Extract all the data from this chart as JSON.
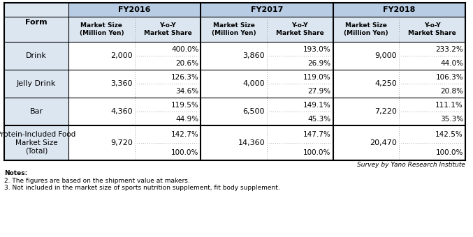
{
  "header_bg": "#b8cce4",
  "subheader_bg": "#dce6f1",
  "data_bg": "#ffffff",
  "years": [
    "FY2016",
    "FY2017",
    "FY2018"
  ],
  "row_labels": [
    "Drink",
    "Jelly Drink",
    "Bar",
    "Protein-Included Food\nMarket Size\n(Total)"
  ],
  "market_size": [
    [
      "2,000",
      "3,860",
      "9,000"
    ],
    [
      "3,360",
      "4,000",
      "4,250"
    ],
    [
      "4,360",
      "6,500",
      "7,220"
    ],
    [
      "9,720",
      "14,360",
      "20,470"
    ]
  ],
  "yoy": [
    [
      "400.0%",
      "193.0%",
      "233.2%"
    ],
    [
      "126.3%",
      "119.0%",
      "106.3%"
    ],
    [
      "119.5%",
      "149.1%",
      "111.1%"
    ],
    [
      "142.7%",
      "147.7%",
      "142.5%"
    ]
  ],
  "market_share": [
    [
      "20.6%",
      "26.9%",
      "44.0%"
    ],
    [
      "34.6%",
      "27.9%",
      "20.8%"
    ],
    [
      "44.9%",
      "45.3%",
      "35.3%"
    ],
    [
      "100.0%",
      "100.0%",
      "100.0%"
    ]
  ],
  "survey_text": "Survey by Yano Research Institute",
  "notes": [
    "Notes:",
    "2. The figures are based on the shipment value at makers.",
    "3. Not included in the market size of sports nutrition supplement, fit body supplement."
  ],
  "L": 6,
  "T": 4,
  "TW": 660,
  "col0": 92,
  "rh0": 20,
  "rh1": 36,
  "rh2": 40,
  "rh3": 50
}
